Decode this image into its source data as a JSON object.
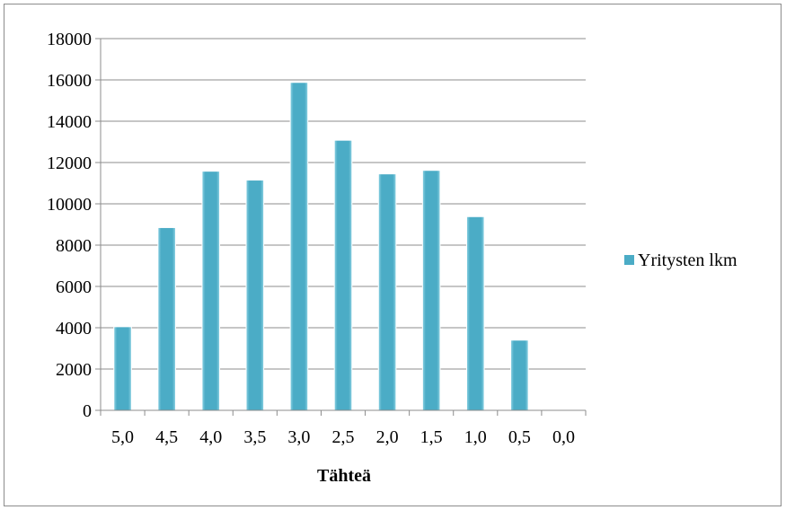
{
  "chart_data": {
    "type": "bar",
    "title": "",
    "xlabel": "Tähteä",
    "ylabel": "",
    "categories": [
      "5,0",
      "4,5",
      "4,0",
      "3,5",
      "3,0",
      "2,5",
      "2,0",
      "1,5",
      "1,0",
      "0,5",
      "0,0"
    ],
    "series": [
      {
        "name": "Yritysten lkm",
        "values": [
          4050,
          8850,
          11580,
          11150,
          15880,
          13080,
          11450,
          11620,
          9380,
          3400,
          0
        ],
        "color": "#4bacc6"
      }
    ],
    "ylim": [
      0,
      18000
    ],
    "yticks": [
      0,
      2000,
      4000,
      6000,
      8000,
      10000,
      12000,
      14000,
      16000,
      18000
    ],
    "grid": true,
    "legend": "right"
  }
}
